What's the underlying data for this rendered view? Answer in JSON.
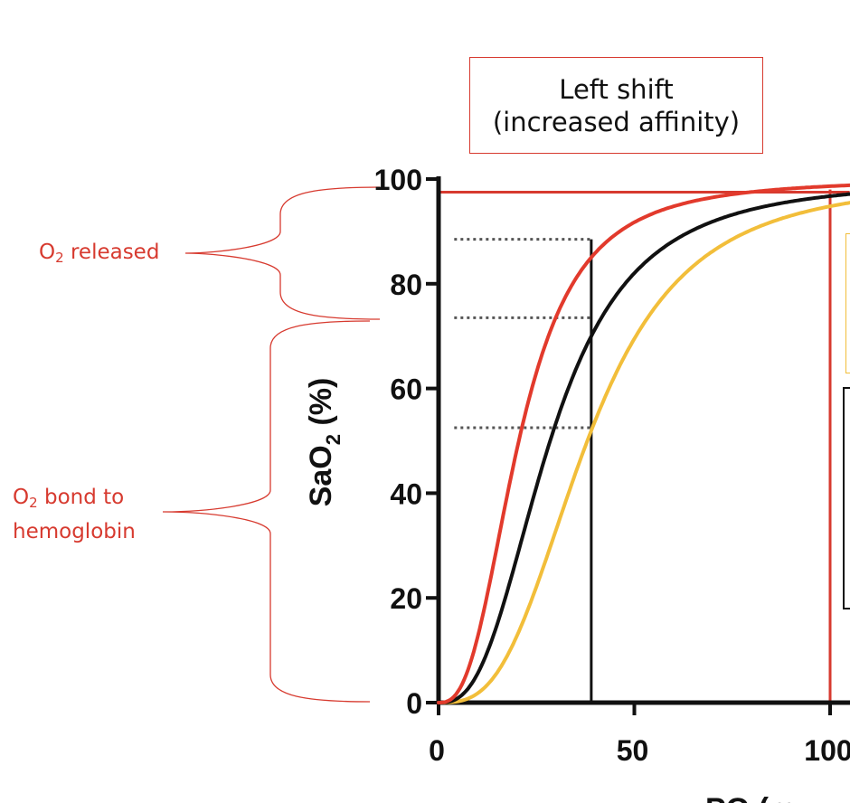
{
  "chart_data": {
    "type": "line",
    "title": "Left shift",
    "subtitle": "(increased affinity)",
    "ylabel_main": "SaO",
    "ylabel_sub": "2",
    "ylabel_suffix": " (%)",
    "xlabel_visible": "PO  (m",
    "xlim": [
      0,
      105
    ],
    "ylim": [
      0,
      100
    ],
    "x_ticks": [
      0,
      50,
      100
    ],
    "x_tick_labels": [
      "0",
      "50",
      "100"
    ],
    "y_ticks": [
      0,
      20,
      40,
      60,
      80,
      100
    ],
    "y_tick_labels": [
      "0",
      "20",
      "40",
      "60",
      "80",
      "100"
    ],
    "series": [
      {
        "color": "#e23a2c",
        "p50": 20.5,
        "n": 2.7,
        "x": [
          0,
          10,
          20,
          30,
          40,
          50,
          60,
          70,
          80,
          90,
          100,
          105
        ]
      },
      {
        "color": "#111111",
        "p50": 28.5,
        "n": 2.7,
        "x": [
          0,
          10,
          20,
          30,
          40,
          50,
          60,
          70,
          80,
          90,
          100,
          105
        ]
      },
      {
        "color": "#f2be3a",
        "p50": 38.0,
        "n": 3.0,
        "x": [
          0,
          10,
          20,
          30,
          40,
          50,
          60,
          70,
          80,
          90,
          100,
          105
        ]
      }
    ],
    "reference_lines": [
      {
        "kind": "horizontal",
        "y": 97.5,
        "from_x": 0,
        "to_x": 105,
        "color": "#d73a2f",
        "style": "solid"
      },
      {
        "kind": "vertical",
        "x": 100,
        "from_y": 0,
        "to_y": 98,
        "color": "#d73a2f",
        "style": "solid"
      },
      {
        "kind": "vertical",
        "x": 39,
        "from_y": 0,
        "to_y": 88.5,
        "color": "#111111",
        "style": "solid"
      },
      {
        "kind": "horizontal",
        "y": 88.5,
        "from_x": 4,
        "to_x": 39,
        "color": "#555555",
        "style": "dotted"
      },
      {
        "kind": "horizontal",
        "y": 73.5,
        "from_x": 4,
        "to_x": 39,
        "color": "#555555",
        "style": "dotted"
      },
      {
        "kind": "horizontal",
        "y": 52.5,
        "from_x": 4,
        "to_x": 39,
        "color": "#555555",
        "style": "dotted"
      }
    ],
    "annotations": [
      {
        "text_pre": "O",
        "text_sub": "2",
        "text_post": " released",
        "y_range": [
          73.5,
          98
        ]
      },
      {
        "text_pre": "O",
        "text_sub": "2",
        "text_post": " bond to",
        "line2": "hemoglobin",
        "y_range": [
          0,
          73.5
        ]
      }
    ],
    "grid": false
  },
  "colors": {
    "accent": "#d73a2f",
    "legend_yellow": "#f2be3a",
    "axis": "#111111"
  }
}
